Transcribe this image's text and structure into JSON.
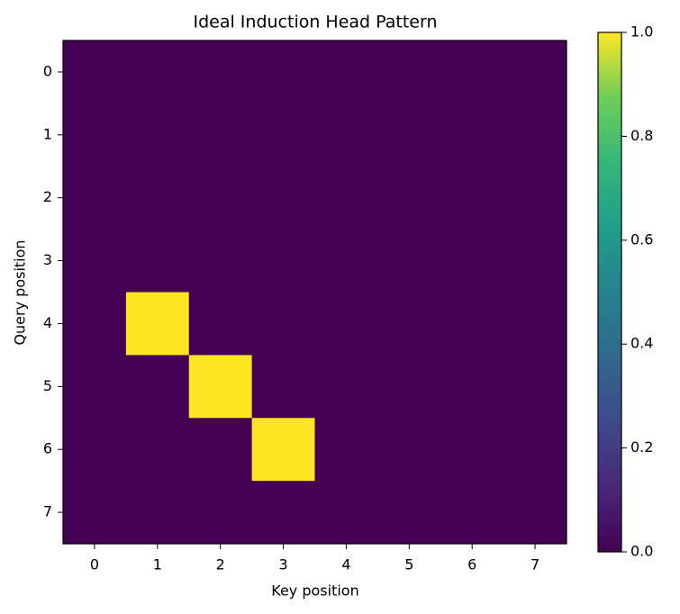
{
  "chart_data": {
    "type": "heatmap",
    "title": "Ideal Induction Head Pattern",
    "x_label": "Key position",
    "y_label": "Query position",
    "x": [
      0,
      1,
      2,
      3,
      4,
      5,
      6,
      7
    ],
    "y": [
      0,
      1,
      2,
      3,
      4,
      5,
      6,
      7
    ],
    "values": [
      [
        0,
        0,
        0,
        0,
        0,
        0,
        0,
        0
      ],
      [
        0,
        0,
        0,
        0,
        0,
        0,
        0,
        0
      ],
      [
        0,
        0,
        0,
        0,
        0,
        0,
        0,
        0
      ],
      [
        0,
        0,
        0,
        0,
        0,
        0,
        0,
        0
      ],
      [
        0,
        1,
        0,
        0,
        0,
        0,
        0,
        0
      ],
      [
        0,
        0,
        1,
        0,
        0,
        0,
        0,
        0
      ],
      [
        0,
        0,
        0,
        1,
        0,
        0,
        0,
        0
      ],
      [
        0,
        0,
        0,
        0,
        0,
        0,
        0,
        0
      ]
    ],
    "colormap": "viridis",
    "clim": [
      0,
      1
    ],
    "cticks": [
      {
        "value": 0,
        "label": "0.0"
      },
      0.2,
      0.4,
      0.6,
      0.8,
      {
        "value": 1,
        "label": "1.0"
      }
    ]
  }
}
